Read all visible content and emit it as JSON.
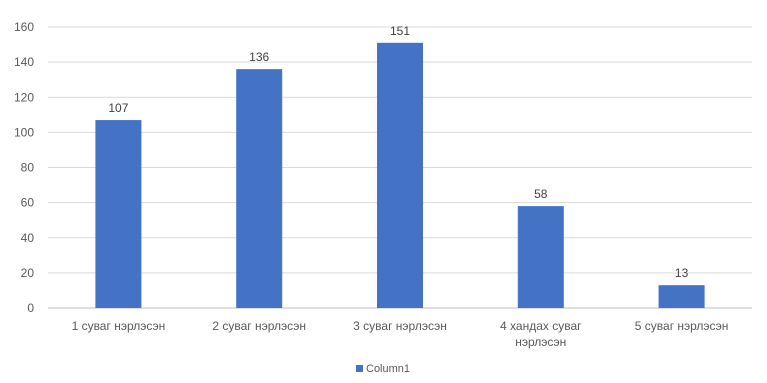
{
  "chart_data": {
    "type": "bar",
    "categories": [
      [
        "1 суваг нэрлэсэн"
      ],
      [
        "2 суваг нэрлэсэн"
      ],
      [
        "3 суваг нэрлэсэн"
      ],
      [
        "4 хандах суваг",
        "нэрлэсэн"
      ],
      [
        "5 суваг нэрлэсэн"
      ]
    ],
    "series": [
      {
        "name": "Column1",
        "values": [
          107,
          136,
          151,
          58,
          13
        ],
        "color": "#4472C4"
      }
    ],
    "ylim": [
      0,
      160
    ],
    "yticks": [
      0,
      20,
      40,
      60,
      80,
      100,
      120,
      140,
      160
    ],
    "grid": true,
    "legend": "bottom",
    "data_labels": true
  }
}
